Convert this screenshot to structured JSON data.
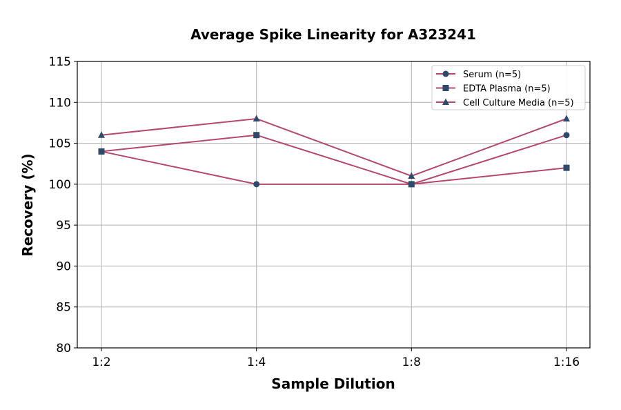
{
  "chart_data": {
    "type": "line",
    "title": "Average Spike Linearity for A323241",
    "xlabel": "Sample Dilution",
    "ylabel": "Recovery (%)",
    "categories": [
      "1:2",
      "1:4",
      "1:8",
      "1:16"
    ],
    "ylim": [
      80,
      115
    ],
    "yticks": [
      80,
      85,
      90,
      95,
      100,
      105,
      110,
      115
    ],
    "grid": true,
    "legend_position": "top-right",
    "colors": {
      "line": "#b5476d",
      "marker": "#2d4a6b"
    },
    "series": [
      {
        "name": "Serum (n=5)",
        "marker": "circle",
        "values": [
          104,
          100,
          100,
          106
        ]
      },
      {
        "name": "EDTA Plasma (n=5)",
        "marker": "square",
        "values": [
          104,
          106,
          100,
          102
        ]
      },
      {
        "name": "Cell Culture Media (n=5)",
        "marker": "triangle",
        "values": [
          106,
          108,
          101,
          108
        ]
      }
    ]
  }
}
